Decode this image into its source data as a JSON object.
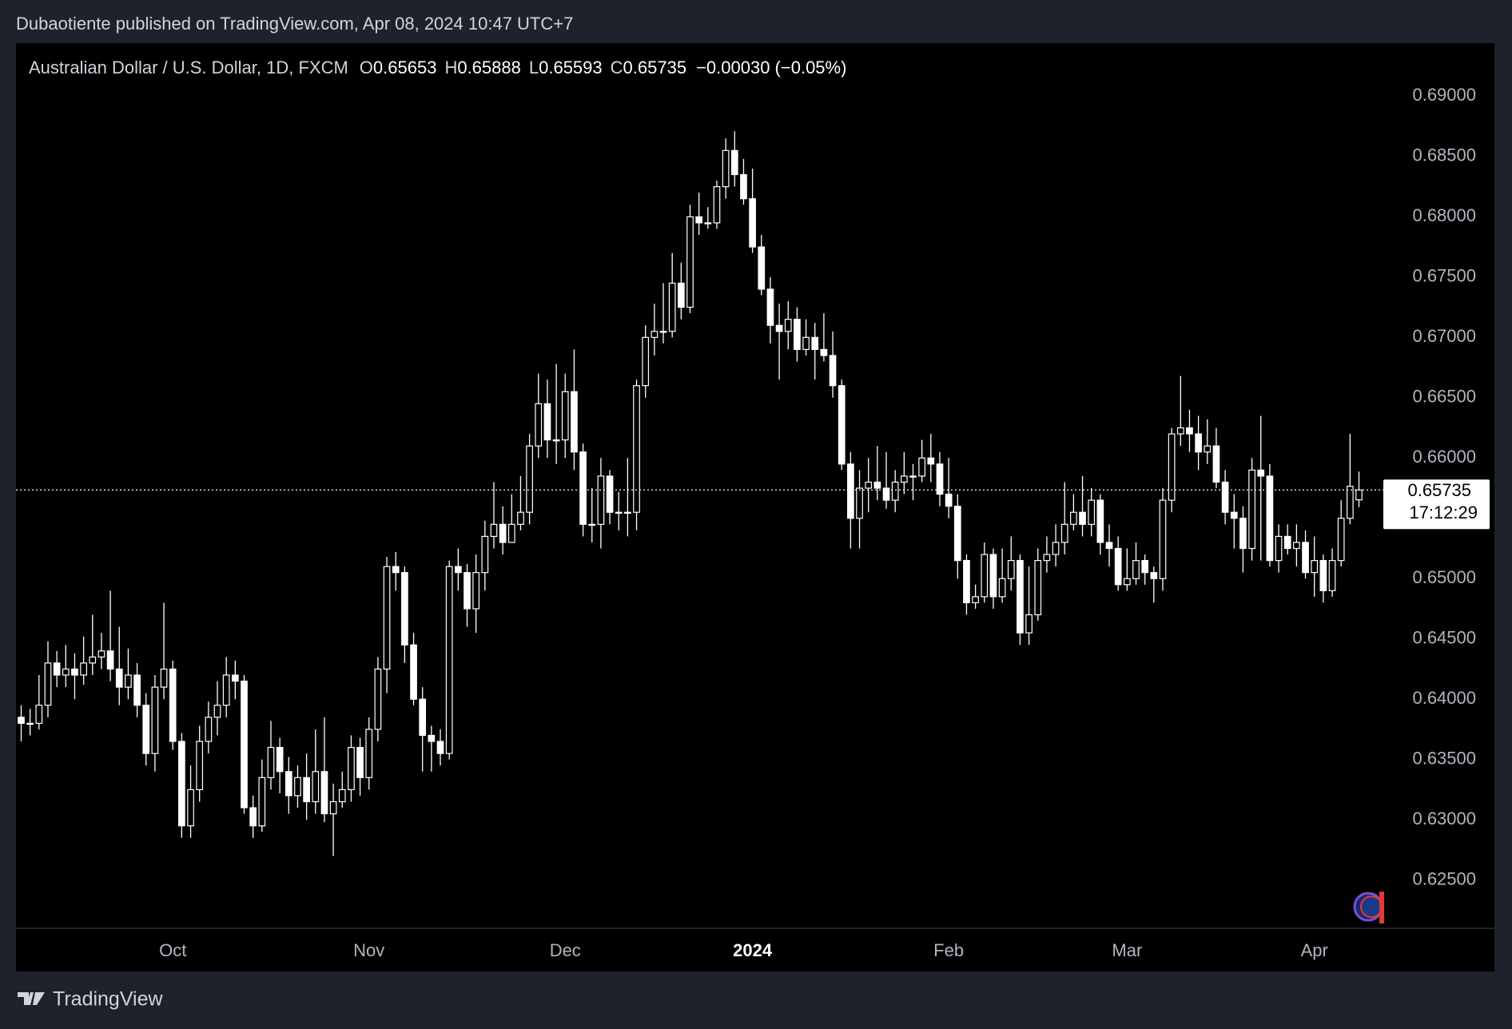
{
  "header": "Dubaotiente published on TradingView.com, Apr 08, 2024 10:47 UTC+7",
  "footer": "TradingView",
  "chart_data": {
    "type": "candlestick",
    "symbol": "Australian Dollar / U.S. Dollar, 1D, FXCM",
    "ohlc_prefixes": [
      "O",
      "H",
      "L",
      "C"
    ],
    "change": "−0.00030 (−0.05%)",
    "countdown": "17:12:29",
    "colors": {
      "up": "#000000",
      "down": "#ffffff",
      "outline": "#ffffff"
    },
    "ylim": [
      0.621,
      0.6944
    ],
    "yticks": [
      {
        "value": 0.625,
        "label": "0.62500"
      },
      {
        "value": 0.63,
        "label": "0.63000"
      },
      {
        "value": 0.635,
        "label": "0.63500"
      },
      {
        "value": 0.64,
        "label": "0.64000"
      },
      {
        "value": 0.645,
        "label": "0.64500"
      },
      {
        "value": 0.65,
        "label": "0.65000"
      },
      {
        "value": 0.655,
        "label": "0.65500"
      },
      {
        "value": 0.66,
        "label": "0.66000"
      },
      {
        "value": 0.665,
        "label": "0.66500"
      },
      {
        "value": 0.67,
        "label": "0.67000"
      },
      {
        "value": 0.675,
        "label": "0.67500"
      },
      {
        "value": 0.68,
        "label": "0.68000"
      },
      {
        "value": 0.685,
        "label": "0.68500"
      },
      {
        "value": 0.69,
        "label": "0.69000"
      }
    ],
    "categories": [
      null,
      null,
      null,
      null,
      null,
      null,
      null,
      null,
      null,
      null,
      null,
      null,
      null,
      null,
      null,
      null,
      null,
      "Oct",
      null,
      null,
      null,
      null,
      null,
      null,
      null,
      null,
      null,
      null,
      null,
      null,
      null,
      null,
      null,
      null,
      null,
      null,
      null,
      null,
      null,
      "Nov",
      null,
      null,
      null,
      null,
      null,
      null,
      null,
      null,
      null,
      null,
      null,
      null,
      null,
      null,
      null,
      null,
      null,
      null,
      null,
      null,
      null,
      "Dec",
      null,
      null,
      null,
      null,
      null,
      null,
      null,
      null,
      null,
      null,
      null,
      null,
      null,
      null,
      null,
      null,
      null,
      null,
      null,
      null,
      "2024",
      null,
      null,
      null,
      null,
      null,
      null,
      null,
      null,
      null,
      null,
      null,
      null,
      null,
      null,
      null,
      null,
      null,
      null,
      null,
      null,
      null,
      "Feb",
      null,
      null,
      null,
      null,
      null,
      null,
      null,
      null,
      null,
      null,
      null,
      null,
      null,
      null,
      null,
      null,
      null,
      null,
      null,
      "Mar",
      null,
      null,
      null,
      null,
      null,
      null,
      null,
      null,
      null,
      null,
      null,
      null,
      null,
      null,
      null,
      null,
      null,
      null,
      null,
      null,
      "Apr",
      null,
      null,
      null,
      null,
      null
    ],
    "open": [
      0.6385,
      0.638,
      0.638,
      0.6395,
      0.643,
      0.642,
      0.6425,
      0.642,
      0.643,
      0.6435,
      0.644,
      0.6425,
      0.641,
      0.642,
      0.6395,
      0.6355,
      0.641,
      0.6425,
      0.6365,
      0.6295,
      0.6325,
      0.6365,
      0.6385,
      0.6395,
      0.642,
      0.6415,
      0.631,
      0.6295,
      0.6335,
      0.636,
      0.634,
      0.632,
      0.6335,
      0.6315,
      0.634,
      0.6305,
      0.6315,
      0.6325,
      0.636,
      0.6335,
      0.6375,
      0.6425,
      0.651,
      0.6505,
      0.6445,
      0.64,
      0.637,
      0.6365,
      0.6355,
      0.651,
      0.6505,
      0.6475,
      0.6505,
      0.6535,
      0.6545,
      0.653,
      0.6545,
      0.6555,
      0.661,
      0.6645,
      0.6615,
      0.6615,
      0.6655,
      0.6605,
      0.6545,
      0.6545,
      0.6585,
      0.6555,
      0.6555,
      0.6555,
      0.666,
      0.67,
      0.6705,
      0.6705,
      0.6745,
      0.6725,
      0.68,
      0.6795,
      0.6795,
      0.6825,
      0.6855,
      0.6835,
      0.6815,
      0.6775,
      0.674,
      0.671,
      0.6705,
      0.6715,
      0.669,
      0.67,
      0.669,
      0.6685,
      0.666,
      0.6595,
      0.655,
      0.6575,
      0.658,
      0.6575,
      0.6565,
      0.658,
      0.6585,
      0.6585,
      0.66,
      0.6595,
      0.657,
      0.656,
      0.6515,
      0.648,
      0.6485,
      0.652,
      0.6485,
      0.65,
      0.6515,
      0.6455,
      0.647,
      0.6515,
      0.652,
      0.653,
      0.6545,
      0.6555,
      0.6545,
      0.6565,
      0.653,
      0.6525,
      0.6495,
      0.65,
      0.6515,
      0.6505,
      0.65,
      0.6565,
      0.662,
      0.6625,
      0.662,
      0.6605,
      0.661,
      0.658,
      0.6555,
      0.655,
      0.6525,
      0.659,
      0.6585,
      0.6515,
      0.6535,
      0.6525,
      0.653,
      0.6505,
      0.6515,
      0.649,
      0.6515,
      0.655,
      0.65653
    ],
    "high": [
      0.6395,
      0.6392,
      0.642,
      0.6448,
      0.644,
      0.6445,
      0.6438,
      0.6452,
      0.647,
      0.6455,
      0.649,
      0.646,
      0.6442,
      0.643,
      0.6405,
      0.642,
      0.648,
      0.6432,
      0.6372,
      0.6345,
      0.6378,
      0.6398,
      0.6415,
      0.6435,
      0.6432,
      0.642,
      0.632,
      0.635,
      0.6382,
      0.6368,
      0.6352,
      0.6345,
      0.6355,
      0.6375,
      0.6385,
      0.633,
      0.634,
      0.637,
      0.6368,
      0.6385,
      0.6435,
      0.6518,
      0.6522,
      0.651,
      0.6455,
      0.641,
      0.6378,
      0.6375,
      0.6515,
      0.6525,
      0.6512,
      0.652,
      0.6548,
      0.658,
      0.656,
      0.657,
      0.6585,
      0.662,
      0.667,
      0.6665,
      0.6678,
      0.667,
      0.669,
      0.6612,
      0.6575,
      0.66,
      0.659,
      0.6572,
      0.66,
      0.6665,
      0.671,
      0.6728,
      0.6745,
      0.677,
      0.6762,
      0.681,
      0.682,
      0.6808,
      0.683,
      0.6865,
      0.6871,
      0.6848,
      0.684,
      0.6785,
      0.675,
      0.6728,
      0.673,
      0.6725,
      0.6715,
      0.6712,
      0.672,
      0.6705,
      0.6665,
      0.6605,
      0.659,
      0.66,
      0.661,
      0.6605,
      0.659,
      0.6605,
      0.6595,
      0.6615,
      0.662,
      0.6605,
      0.66,
      0.657,
      0.652,
      0.6495,
      0.653,
      0.6525,
      0.6525,
      0.6535,
      0.652,
      0.651,
      0.6525,
      0.6535,
      0.6545,
      0.658,
      0.657,
      0.6585,
      0.6575,
      0.657,
      0.6545,
      0.6535,
      0.6525,
      0.653,
      0.652,
      0.651,
      0.6575,
      0.6625,
      0.6668,
      0.664,
      0.6635,
      0.6632,
      0.6625,
      0.659,
      0.657,
      0.656,
      0.66,
      0.6635,
      0.6595,
      0.6545,
      0.6545,
      0.6545,
      0.654,
      0.6535,
      0.652,
      0.6525,
      0.6565,
      0.662,
      0.65888
    ],
    "low": [
      0.6365,
      0.637,
      0.6375,
      0.6385,
      0.641,
      0.641,
      0.64,
      0.6412,
      0.642,
      0.6425,
      0.6415,
      0.6395,
      0.64,
      0.6385,
      0.6345,
      0.634,
      0.64,
      0.6358,
      0.6285,
      0.6285,
      0.6315,
      0.6355,
      0.637,
      0.6385,
      0.64,
      0.6305,
      0.6285,
      0.629,
      0.6325,
      0.6322,
      0.6305,
      0.631,
      0.63,
      0.6305,
      0.6298,
      0.627,
      0.631,
      0.6315,
      0.632,
      0.6325,
      0.6365,
      0.6405,
      0.649,
      0.643,
      0.6395,
      0.634,
      0.634,
      0.6345,
      0.635,
      0.649,
      0.646,
      0.6455,
      0.649,
      0.6525,
      0.652,
      0.653,
      0.654,
      0.6545,
      0.66,
      0.66,
      0.6595,
      0.66,
      0.659,
      0.6535,
      0.653,
      0.6525,
      0.6545,
      0.654,
      0.6535,
      0.654,
      0.665,
      0.6685,
      0.6695,
      0.67,
      0.6715,
      0.672,
      0.6785,
      0.679,
      0.679,
      0.6815,
      0.6825,
      0.681,
      0.677,
      0.6735,
      0.6695,
      0.6665,
      0.669,
      0.668,
      0.6685,
      0.6665,
      0.668,
      0.665,
      0.659,
      0.6525,
      0.6525,
      0.6555,
      0.6565,
      0.6558,
      0.6555,
      0.657,
      0.6565,
      0.658,
      0.658,
      0.656,
      0.655,
      0.65,
      0.647,
      0.6475,
      0.648,
      0.6475,
      0.648,
      0.649,
      0.6445,
      0.6445,
      0.6465,
      0.6505,
      0.651,
      0.652,
      0.654,
      0.6535,
      0.6535,
      0.652,
      0.651,
      0.649,
      0.649,
      0.6495,
      0.6495,
      0.648,
      0.649,
      0.6555,
      0.661,
      0.6605,
      0.659,
      0.6595,
      0.6575,
      0.6545,
      0.6525,
      0.6505,
      0.6515,
      0.6515,
      0.651,
      0.6505,
      0.652,
      0.651,
      0.65,
      0.6485,
      0.648,
      0.6485,
      0.651,
      0.6545,
      0.65593
    ],
    "close": [
      0.638,
      0.638,
      0.6395,
      0.643,
      0.642,
      0.6425,
      0.642,
      0.643,
      0.6435,
      0.644,
      0.6425,
      0.641,
      0.642,
      0.6395,
      0.6355,
      0.641,
      0.6425,
      0.6365,
      0.6295,
      0.6325,
      0.6365,
      0.6385,
      0.6395,
      0.642,
      0.6415,
      0.631,
      0.6295,
      0.6335,
      0.636,
      0.634,
      0.632,
      0.6335,
      0.6315,
      0.634,
      0.6305,
      0.6315,
      0.6325,
      0.636,
      0.6335,
      0.6375,
      0.6425,
      0.651,
      0.6505,
      0.6445,
      0.64,
      0.637,
      0.6365,
      0.6355,
      0.651,
      0.6505,
      0.6475,
      0.6505,
      0.6535,
      0.6545,
      0.653,
      0.6545,
      0.6555,
      0.661,
      0.6645,
      0.6615,
      0.6615,
      0.6655,
      0.6605,
      0.6545,
      0.6545,
      0.6585,
      0.6555,
      0.6555,
      0.6555,
      0.666,
      0.67,
      0.6705,
      0.6705,
      0.6745,
      0.6725,
      0.68,
      0.6795,
      0.6795,
      0.6825,
      0.6855,
      0.6835,
      0.6815,
      0.6775,
      0.674,
      0.671,
      0.6705,
      0.6715,
      0.669,
      0.67,
      0.669,
      0.6685,
      0.666,
      0.6595,
      0.655,
      0.6575,
      0.658,
      0.6575,
      0.6565,
      0.658,
      0.6585,
      0.6585,
      0.66,
      0.6595,
      0.657,
      0.656,
      0.6515,
      0.648,
      0.6485,
      0.652,
      0.6485,
      0.65,
      0.6515,
      0.6455,
      0.647,
      0.6515,
      0.652,
      0.653,
      0.6545,
      0.6555,
      0.6545,
      0.6565,
      0.653,
      0.6525,
      0.6495,
      0.65,
      0.6515,
      0.6505,
      0.65,
      0.6565,
      0.662,
      0.6625,
      0.662,
      0.6605,
      0.661,
      0.658,
      0.6555,
      0.655,
      0.6525,
      0.659,
      0.6585,
      0.6515,
      0.6535,
      0.6525,
      0.653,
      0.6505,
      0.6515,
      0.649,
      0.6515,
      0.655,
      0.65765,
      0.65735
    ]
  }
}
